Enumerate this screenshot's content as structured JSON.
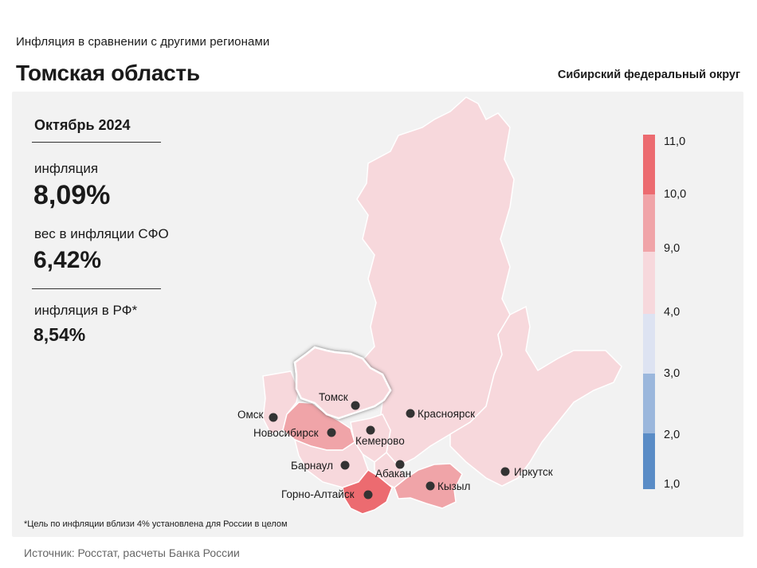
{
  "header": {
    "subtitle": "Инфляция в сравнении с другими регионами",
    "title": "Томская область",
    "district": "Сибирский федеральный округ"
  },
  "stats": {
    "period": "Октябрь 2024",
    "inflation_label": "инфляция",
    "inflation_value": "8,09%",
    "weight_label": "вес в инфляции СФО",
    "weight_value": "6,42%",
    "rf_label": "инфляция в РФ*",
    "rf_value": "8,54%"
  },
  "map": {
    "highlighted_region": "Томская область",
    "cities": {
      "omsk": "Омск",
      "tomsk": "Томск",
      "novosibirsk": "Новосибирск",
      "kemerovo": "Кемерово",
      "krasnoyarsk": "Красноярск",
      "barnaul": "Барнаул",
      "abakan": "Абакан",
      "gorno_altaysk": "Горно-Алтайск",
      "kyzyl": "Кызыл",
      "irkutsk": "Иркутск"
    },
    "colors": {
      "band_4_9": "#f7d8dc",
      "band_9_10": "#f0a4a8",
      "band_10_11": "#ec6b70",
      "band_3_4": "#dde3f2",
      "band_2_3": "#9bb7dc",
      "band_1_2": "#5a8cc6"
    }
  },
  "legend": {
    "ticks": [
      "11,0",
      "10,0",
      "9,0",
      "4,0",
      "3,0",
      "2,0",
      "1,0"
    ]
  },
  "footnote": "*Цель по инфляции вблизи 4% установлена для России в целом",
  "source": "Источник: Росстат, расчеты Банка России"
}
